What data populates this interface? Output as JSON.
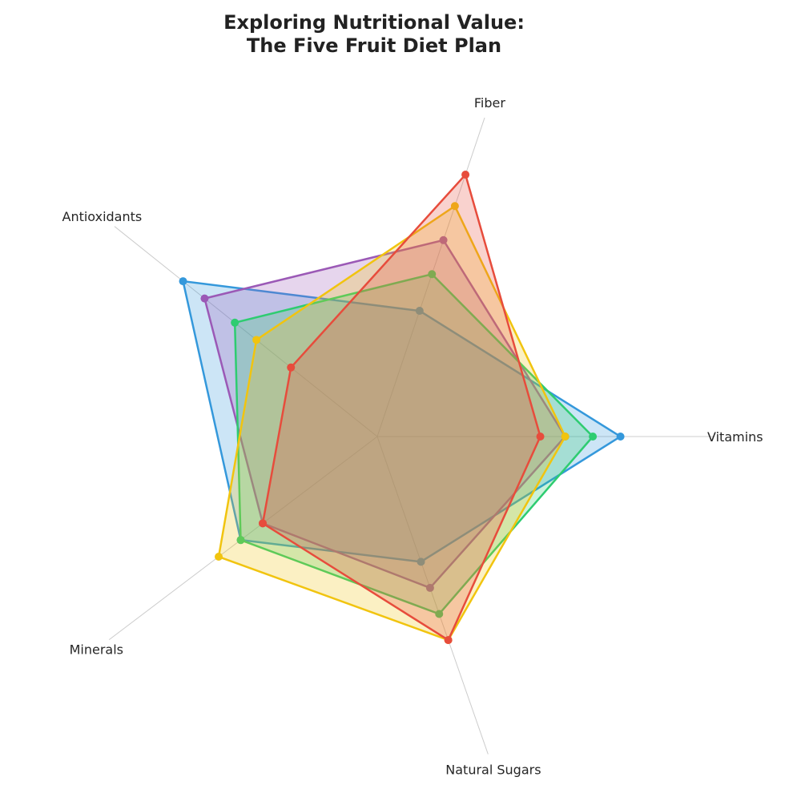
{
  "title_line1": "Exploring Nutritional Value:",
  "title_line2": "The Five Fruit Diet Plan",
  "chart_data": {
    "type": "radar",
    "axes": [
      "Vitamins",
      "Fiber",
      "Antioxidants",
      "Minerals",
      "Natural Sugars"
    ],
    "range": [
      0,
      100
    ],
    "grid": false,
    "legend": "none",
    "series": [
      {
        "color": "#3498db",
        "values": [
          88,
          48,
          90,
          62,
          48
        ]
      },
      {
        "color": "#9b59b6",
        "values": [
          68,
          75,
          80,
          52,
          58
        ]
      },
      {
        "color": "#2ecc71",
        "values": [
          78,
          62,
          66,
          62,
          68
        ]
      },
      {
        "color": "#f1c40f",
        "values": [
          68,
          88,
          56,
          72,
          78
        ]
      },
      {
        "color": "#e74c3c",
        "values": [
          59,
          100,
          40,
          52,
          78
        ]
      }
    ]
  }
}
